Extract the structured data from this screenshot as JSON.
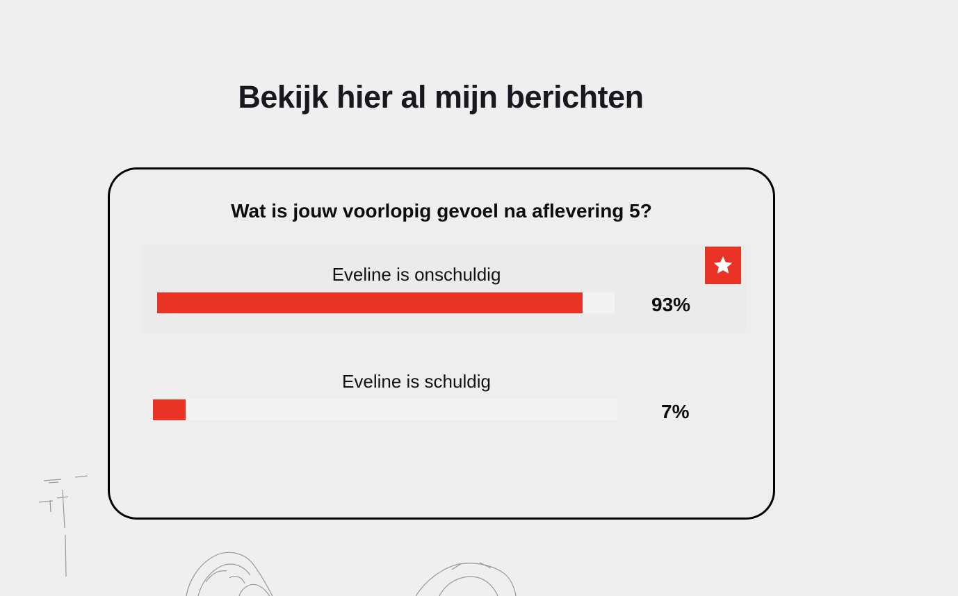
{
  "page": {
    "title": "Bekijk hier al mijn berichten"
  },
  "poll": {
    "question": "Wat is jouw voorlopig gevoel na aflevering 5?",
    "accent_color": "#e93325",
    "options": [
      {
        "label": "Eveline is onschuldig",
        "percent_value": 93,
        "percent_text": "93%",
        "selected": true,
        "badge_icon": "star-icon"
      },
      {
        "label": "Eveline is schuldig",
        "percent_value": 7,
        "percent_text": "7%",
        "selected": false
      }
    ]
  },
  "decoration": {
    "background_icon": "pencil-sketch-illustration"
  }
}
